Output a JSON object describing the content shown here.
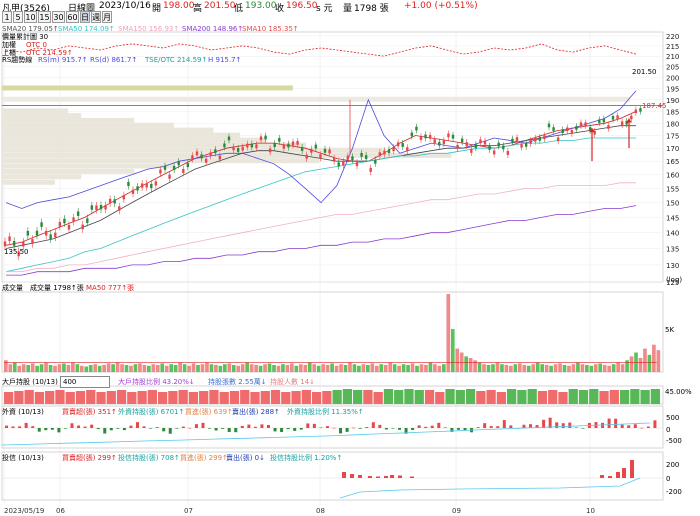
{
  "header": {
    "symbol": "凡甲(3526)",
    "chart_type": "日線圖",
    "date": "2023/10/16",
    "open_label": "開",
    "open": "198.00",
    "high_label": "高",
    "high": "201.50",
    "low_label": "低",
    "low": "193.00",
    "close_label": "收",
    "close": "196.50",
    "unit": "s 元",
    "vol_label": "量",
    "volume": "1798 張",
    "change": "+1.00 (+0.51%)"
  },
  "toolbar": {
    "buttons": [
      "1",
      "5",
      "10",
      "15",
      "30",
      "60",
      "日",
      "週",
      "月"
    ],
    "active": "日"
  },
  "price_legend": {
    "sma20": "SMA20 179.05↑",
    "sma50": "SMA50 174.09↑",
    "sma150": "SMA150 156.93↑",
    "sma200": "SMA200 148.96↑",
    "sma10": "SMA10 185.35↑",
    "cum_count": "價量累計圖 30",
    "accel": "加權",
    "otc0": "OTC 0",
    "upper": "上櫃",
    "otc_val": "OTC 214.59↑",
    "rs_line": "RS趨勢線",
    "rs": "RS(m) 915.7↑",
    "rs_d": "RS(d) 861.7↑",
    "tse_otc": "TSE/OTC 214.59↑",
    "h": "H 915.7↑"
  },
  "price_axis": {
    "ticks": [
      220,
      215,
      210,
      205,
      200,
      195,
      190,
      185,
      180,
      175,
      170,
      165,
      160,
      155,
      150,
      145,
      140,
      135,
      130,
      125
    ],
    "scale_label": "(log)",
    "hi_label": "201.50",
    "lo_label": "135.50",
    "mark_label": "187.45"
  },
  "volume": {
    "title": "成交量",
    "legend": "成交量 1798↑張",
    "ma_legend": "MA50 777↑張",
    "axis_label": "5K"
  },
  "big_holders": {
    "title": "大戶持股 (10/13)",
    "input_value": "400",
    "legend1": "大戶持股比例 43.20%↓",
    "legend2": "持股張數 2.55萬↓",
    "legend3": "持股人數 14↓",
    "axis_label": "45.00%"
  },
  "foreign": {
    "title": "外資 (10/13)",
    "legend1": "買賣超(張) 351↑",
    "legend2": "外資持股(張) 6701↑",
    "legend3": "買進(張) 639↑",
    "legend4": "賣出(張) 288↑",
    "legend5": "外資持股比例 11.35%↑",
    "axis": [
      "500",
      "0",
      "-500"
    ]
  },
  "trust": {
    "title": "投信 (10/13)",
    "legend1": "買賣超(張) 299↑",
    "legend2": "投信持股(張) 708↑",
    "legend3": "買進(張) 299↑",
    "legend4": "賣出(張) 0↓",
    "legend5": "投信持股比例 1.20%↑",
    "axis": [
      "200",
      "0",
      "-200"
    ]
  },
  "x_axis": {
    "labels": [
      "2023/05/19",
      "06",
      "07",
      "08",
      "09",
      "10"
    ]
  },
  "colors": {
    "up": "#e8474a",
    "down": "#2a8a3a",
    "sma10": "#cc2222",
    "sma20": "#444444",
    "sma50": "#35c4c6",
    "sma150": "#f0b0c8",
    "sma200": "#8a3ad0",
    "rs": "#4a4ae0",
    "bull_vol": "#f08a8a",
    "bear_vol": "#5ac25a",
    "holder_up": "#f06b6b",
    "holder_down": "#58b858",
    "inst_line": "#56c8ec"
  },
  "chart_data": [
    {
      "type": "line",
      "title": "凡甲(3526) 日線圖",
      "x_range": [
        "2023-05-19",
        "2023-10-16"
      ],
      "ylim": [
        125,
        222
      ],
      "log_scale": true,
      "series": [
        {
          "name": "SMA10",
          "values": [
            136,
            137,
            139,
            141,
            143,
            145,
            148,
            151,
            154,
            157,
            160,
            163,
            166,
            168,
            170,
            171,
            172,
            172,
            171,
            170,
            168,
            166,
            165,
            165,
            168,
            172,
            175,
            174,
            173,
            172,
            171,
            170,
            171,
            173,
            175,
            177,
            178,
            179,
            180,
            182,
            185
          ]
        },
        {
          "name": "SMA20",
          "values": [
            135,
            136,
            137,
            138,
            140,
            142,
            144,
            147,
            150,
            153,
            156,
            159,
            162,
            164,
            166,
            168,
            169,
            169,
            168,
            167,
            166,
            165,
            165,
            165,
            166,
            167,
            168,
            169,
            170,
            170,
            171,
            171,
            172,
            173,
            174,
            175,
            176,
            177,
            178,
            179,
            179
          ]
        },
        {
          "name": "SMA50",
          "values": [
            128,
            129,
            130,
            131,
            132,
            134,
            135,
            137,
            139,
            141,
            143,
            145,
            147,
            149,
            151,
            153,
            155,
            157,
            159,
            161,
            162,
            163,
            164,
            165,
            166,
            167,
            167,
            168,
            168,
            169,
            170,
            170,
            171,
            172,
            172,
            173,
            173,
            174,
            174,
            174,
            174
          ]
        },
        {
          "name": "SMA150",
          "values": [
            128,
            128,
            129,
            129,
            130,
            130,
            131,
            132,
            133,
            134,
            135,
            136,
            137,
            138,
            139,
            140,
            141,
            142,
            143,
            144,
            145,
            146,
            146,
            147,
            148,
            149,
            150,
            151,
            151,
            152,
            153,
            153,
            154,
            155,
            155,
            156,
            156,
            156,
            156,
            157,
            157
          ]
        },
        {
          "name": "SMA200",
          "values": [
            127,
            127,
            128,
            128,
            128,
            129,
            129,
            129,
            130,
            130,
            131,
            131,
            132,
            132,
            133,
            133,
            134,
            134,
            135,
            135,
            136,
            136,
            137,
            137,
            138,
            138,
            139,
            140,
            140,
            141,
            142,
            143,
            144,
            144,
            145,
            146,
            146,
            147,
            148,
            148,
            149
          ]
        }
      ],
      "annotations": [
        "201.50",
        "135.50",
        "187.45"
      ]
    },
    {
      "type": "bar",
      "title": "成交量",
      "values_relative": [
        0.15,
        0.1,
        0.12,
        0.08,
        0.1,
        0.09,
        0.11,
        0.08,
        0.1,
        0.12,
        0.09,
        0.08,
        0.1,
        0.11,
        0.09,
        0.12,
        0.1,
        0.08,
        0.07,
        0.09,
        0.1,
        0.08,
        0.09,
        0.11,
        0.1,
        0.12,
        0.1,
        0.09,
        0.08,
        0.1,
        0.11,
        0.09,
        0.08,
        0.1,
        0.09,
        0.11,
        0.08,
        0.1,
        0.09,
        0.12,
        0.1,
        0.08,
        0.11,
        0.09,
        0.1,
        0.12,
        0.1,
        0.09,
        0.08,
        0.1,
        0.11,
        0.09,
        0.08,
        0.1,
        0.12,
        0.1,
        0.09,
        0.08,
        0.1,
        0.11,
        0.09,
        0.08,
        0.1,
        0.09,
        0.11,
        0.08,
        0.1,
        0.09,
        0.12,
        0.1,
        0.08,
        0.1,
        0.09,
        0.11,
        0.08,
        0.1,
        0.09,
        0.12,
        0.1,
        0.08,
        0.1,
        0.09,
        0.11,
        0.08,
        0.1,
        0.09,
        0.12,
        0.1,
        0.08,
        0.1,
        0.09,
        0.11,
        0.08,
        0.1,
        0.09,
        0.12,
        0.1,
        0.08,
        0.1,
        1.0,
        0.55,
        0.3,
        0.25,
        0.2,
        0.18,
        0.15,
        0.12,
        0.1,
        0.09,
        0.1,
        0.12,
        0.1,
        0.09,
        0.08,
        0.1,
        0.11,
        0.09,
        0.08,
        0.1,
        0.12,
        0.1,
        0.09,
        0.08,
        0.1,
        0.11,
        0.09,
        0.08,
        0.1,
        0.12,
        0.1,
        0.09,
        0.08,
        0.1,
        0.11,
        0.09,
        0.08,
        0.1,
        0.12,
        0.1,
        0.15,
        0.2,
        0.25,
        0.18,
        0.3,
        0.22,
        0.35,
        0.28
      ]
    }
  ]
}
